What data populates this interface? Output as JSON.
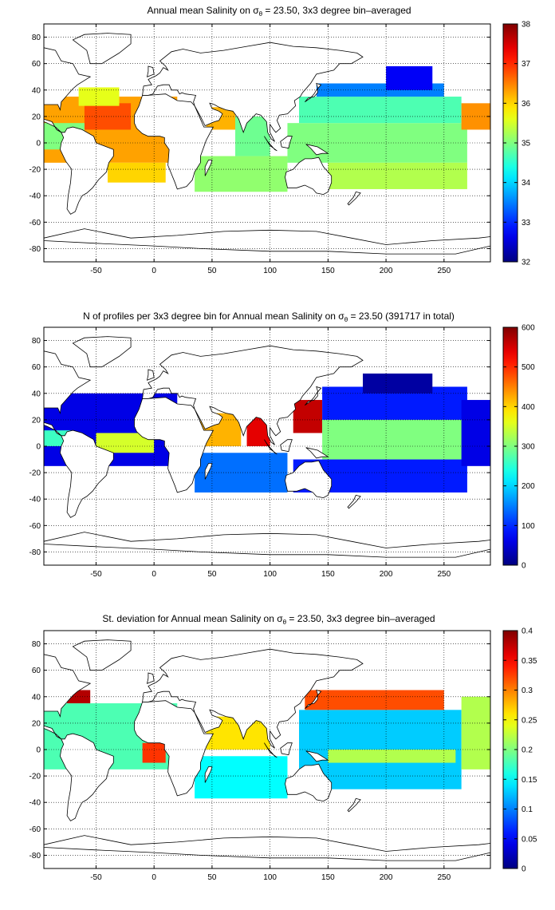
{
  "figure": {
    "panels": [
      {
        "title_prefix": "Annual mean Salinity on ",
        "title_sigma": "σ",
        "title_sub": "θ",
        "title_suffix": " = 23.50, 3x3 degree bin–averaged"
      },
      {
        "title_prefix": "N of profiles per 3x3 degree bin for Annual mean Salinity on ",
        "title_sigma": "σ",
        "title_sub": "θ",
        "title_suffix": " = 23.50 (391717 in total)"
      },
      {
        "title_prefix": "St. deviation for Annual mean Salinity on ",
        "title_sigma": "σ",
        "title_sub": "θ",
        "title_suffix": " = 23.50, 3x3 degree bin–averaged"
      }
    ]
  },
  "chart_data": [
    {
      "type": "heatmap",
      "title": "Annual mean Salinity on σθ = 23.50, 3x3 degree bin–averaged",
      "xlim": [
        -95,
        290
      ],
      "ylim": [
        -90,
        90
      ],
      "xticks": [
        -50,
        0,
        50,
        100,
        150,
        200,
        250
      ],
      "yticks": [
        -80,
        -60,
        -40,
        -20,
        0,
        20,
        40,
        60,
        80
      ],
      "grid": "dotted",
      "colorbar": {
        "min": 32,
        "max": 38,
        "ticks": [
          32,
          33,
          34,
          35,
          36,
          37,
          38
        ]
      },
      "regions": [
        {
          "lon": [
            -95,
            20
          ],
          "lat": [
            -15,
            35
          ],
          "value": 36.3
        },
        {
          "lon": [
            -60,
            -20
          ],
          "lat": [
            10,
            30
          ],
          "value": 36.8
        },
        {
          "lon": [
            -40,
            10
          ],
          "lat": [
            -30,
            -15
          ],
          "value": 36.0
        },
        {
          "lon": [
            -65,
            -30
          ],
          "lat": [
            28,
            42
          ],
          "value": 35.6
        },
        {
          "lon": [
            -95,
            -60
          ],
          "lat": [
            -5,
            15
          ],
          "value": 35.0
        },
        {
          "lon": [
            45,
            70
          ],
          "lat": [
            10,
            27
          ],
          "value": 36.2
        },
        {
          "lon": [
            70,
            100
          ],
          "lat": [
            -10,
            20
          ],
          "value": 34.9
        },
        {
          "lon": [
            35,
            115
          ],
          "lat": [
            -37,
            -10
          ],
          "value": 35.1
        },
        {
          "lon": [
            115,
            270
          ],
          "lat": [
            -15,
            15
          ],
          "value": 35.0
        },
        {
          "lon": [
            125,
            265
          ],
          "lat": [
            15,
            35
          ],
          "value": 34.7
        },
        {
          "lon": [
            140,
            250
          ],
          "lat": [
            35,
            45
          ],
          "value": 33.5
        },
        {
          "lon": [
            200,
            240
          ],
          "lat": [
            40,
            58
          ],
          "value": 32.7
        },
        {
          "lon": [
            150,
            270
          ],
          "lat": [
            -35,
            -15
          ],
          "value": 35.3
        },
        {
          "lon": [
            265,
            290
          ],
          "lat": [
            10,
            30
          ],
          "value": 36.4
        }
      ]
    },
    {
      "type": "heatmap",
      "title": "N of profiles per 3x3 degree bin for Annual mean Salinity on σθ = 23.50 (391717 in total)",
      "xlim": [
        -95,
        290
      ],
      "ylim": [
        -90,
        90
      ],
      "xticks": [
        -50,
        0,
        50,
        100,
        150,
        200,
        250
      ],
      "yticks": [
        -80,
        -60,
        -40,
        -20,
        0,
        20,
        40,
        60,
        80
      ],
      "grid": "dotted",
      "total_profiles": 391717,
      "colorbar": {
        "min": 0,
        "max": 600,
        "ticks": [
          0,
          100,
          200,
          300,
          400,
          500,
          600
        ]
      },
      "regions": [
        {
          "lon": [
            -95,
            20
          ],
          "lat": [
            -15,
            40
          ],
          "value": 60
        },
        {
          "lon": [
            -50,
            0
          ],
          "lat": [
            -5,
            10
          ],
          "value": 350
        },
        {
          "lon": [
            -95,
            -70
          ],
          "lat": [
            0,
            12
          ],
          "value": 260
        },
        {
          "lon": [
            40,
            75
          ],
          "lat": [
            0,
            25
          ],
          "value": 420
        },
        {
          "lon": [
            80,
            100
          ],
          "lat": [
            0,
            25
          ],
          "value": 540
        },
        {
          "lon": [
            35,
            115
          ],
          "lat": [
            -35,
            -5
          ],
          "value": 140
        },
        {
          "lon": [
            120,
            145
          ],
          "lat": [
            10,
            35
          ],
          "value": 560
        },
        {
          "lon": [
            145,
            270
          ],
          "lat": [
            -10,
            20
          ],
          "value": 300
        },
        {
          "lon": [
            145,
            270
          ],
          "lat": [
            20,
            45
          ],
          "value": 90
        },
        {
          "lon": [
            180,
            240
          ],
          "lat": [
            40,
            55
          ],
          "value": 20
        },
        {
          "lon": [
            120,
            270
          ],
          "lat": [
            -35,
            -10
          ],
          "value": 90
        },
        {
          "lon": [
            265,
            290
          ],
          "lat": [
            -15,
            35
          ],
          "value": 60
        }
      ]
    },
    {
      "type": "heatmap",
      "title": "St. deviation for Annual mean Salinity on σθ = 23.50, 3x3 degree bin–averaged",
      "xlim": [
        -95,
        290
      ],
      "ylim": [
        -90,
        90
      ],
      "xticks": [
        -50,
        0,
        50,
        100,
        150,
        200,
        250
      ],
      "yticks": [
        -80,
        -60,
        -40,
        -20,
        0,
        20,
        40,
        60,
        80
      ],
      "grid": "dotted",
      "colorbar": {
        "min": 0,
        "max": 0.4,
        "ticks": [
          0,
          0.05,
          0.1,
          0.15,
          0.2,
          0.25,
          0.3,
          0.35,
          0.4
        ]
      },
      "regions": [
        {
          "lon": [
            -95,
            20
          ],
          "lat": [
            -15,
            35
          ],
          "value": 0.18
        },
        {
          "lon": [
            -75,
            -55
          ],
          "lat": [
            35,
            45
          ],
          "value": 0.38
        },
        {
          "lon": [
            -10,
            10
          ],
          "lat": [
            -10,
            5
          ],
          "value": 0.33
        },
        {
          "lon": [
            35,
            115
          ],
          "lat": [
            -37,
            -5
          ],
          "value": 0.15
        },
        {
          "lon": [
            45,
            100
          ],
          "lat": [
            0,
            25
          ],
          "value": 0.26
        },
        {
          "lon": [
            125,
            265
          ],
          "lat": [
            -30,
            30
          ],
          "value": 0.13
        },
        {
          "lon": [
            130,
            250
          ],
          "lat": [
            30,
            45
          ],
          "value": 0.32
        },
        {
          "lon": [
            150,
            260
          ],
          "lat": [
            -10,
            0
          ],
          "value": 0.22
        },
        {
          "lon": [
            265,
            290
          ],
          "lat": [
            -15,
            40
          ],
          "value": 0.22
        }
      ]
    }
  ]
}
